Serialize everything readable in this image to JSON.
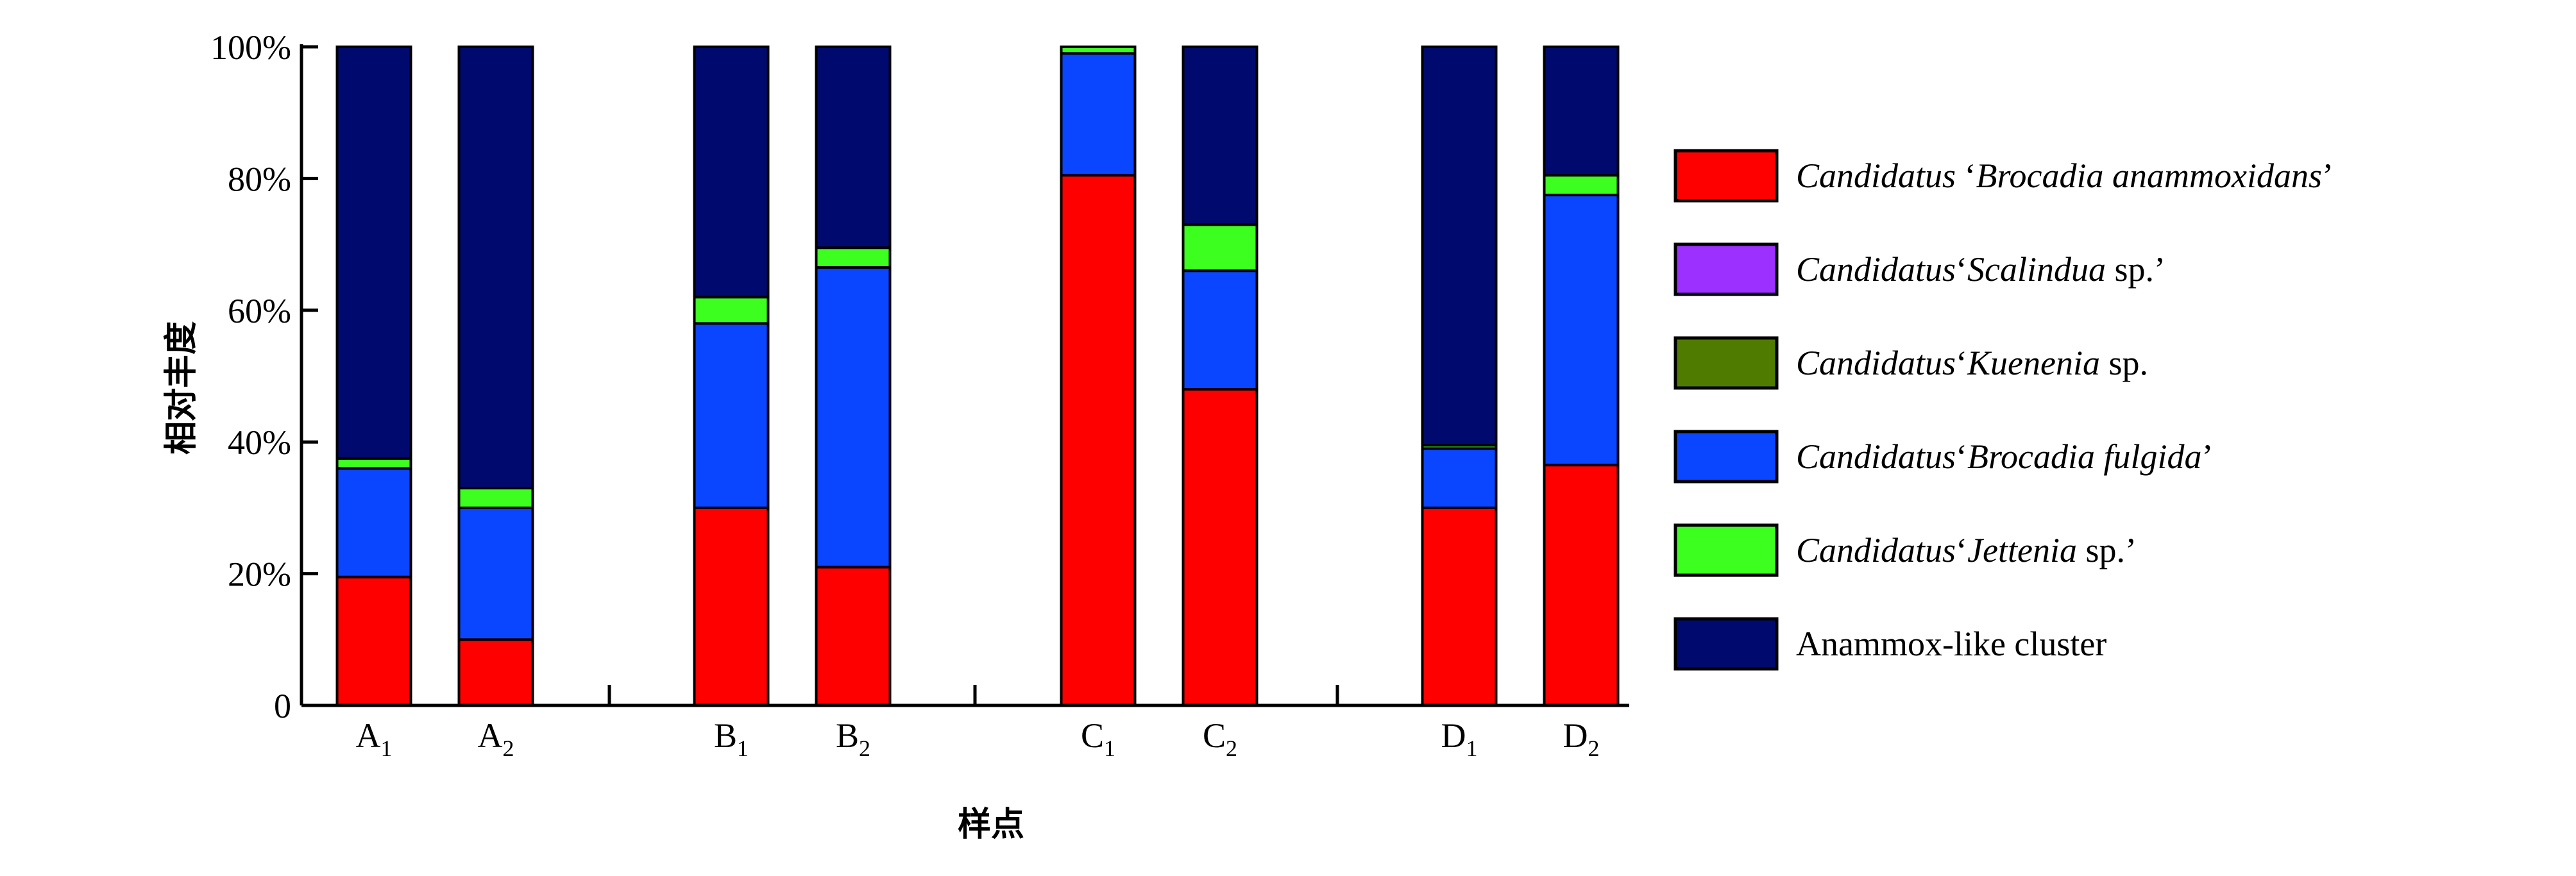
{
  "chart_data": {
    "type": "bar",
    "stacked": true,
    "ylabel": "相对丰度",
    "xlabel": "样点",
    "ylim": [
      0,
      100
    ],
    "y_ticks": [
      "0",
      "20%",
      "40%",
      "60%",
      "80%",
      "100%"
    ],
    "grid": false,
    "legend_position": "right",
    "categories": [
      {
        "base": "A",
        "sub": "1"
      },
      {
        "base": "A",
        "sub": "2"
      },
      {
        "base": "B",
        "sub": "1"
      },
      {
        "base": "B",
        "sub": "2"
      },
      {
        "base": "C",
        "sub": "1"
      },
      {
        "base": "C",
        "sub": "2"
      },
      {
        "base": "D",
        "sub": "1"
      },
      {
        "base": "D",
        "sub": "2"
      }
    ],
    "series": [
      {
        "legend": [
          {
            "text": "Candidatus",
            "italic": true
          },
          {
            "text": " ‘",
            "italic": false
          },
          {
            "text": "Brocadia anammoxidans",
            "italic": true
          },
          {
            "text": "’",
            "italic": false
          }
        ],
        "color": "#ff0000",
        "values": [
          19.5,
          10,
          30,
          21,
          80.5,
          48,
          30,
          36.5
        ]
      },
      {
        "legend": [
          {
            "text": "Candidatus",
            "italic": true
          },
          {
            "text": "‘",
            "italic": false
          },
          {
            "text": "Scalindua",
            "italic": true
          },
          {
            "text": " sp.’",
            "italic": false
          }
        ],
        "color": "#9b30ff",
        "values": [
          0,
          0,
          0,
          0,
          0,
          0,
          0,
          0
        ]
      },
      {
        "legend": [
          {
            "text": "Candidatus",
            "italic": true
          },
          {
            "text": "‘",
            "italic": false
          },
          {
            "text": "Kuenenia",
            "italic": true
          },
          {
            "text": " sp.",
            "italic": false
          }
        ],
        "color": "#4f7c00",
        "values": [
          0,
          0,
          0,
          0,
          0,
          0,
          0,
          0
        ]
      },
      {
        "legend": [
          {
            "text": "Candidatus",
            "italic": true
          },
          {
            "text": "‘",
            "italic": false
          },
          {
            "text": "Brocadia fulgida",
            "italic": true
          },
          {
            "text": "’",
            "italic": false
          }
        ],
        "color": "#0a46ff",
        "values": [
          16.5,
          20,
          28,
          45.5,
          18.5,
          18,
          9,
          41
        ]
      },
      {
        "legend": [
          {
            "text": "Candidatus",
            "italic": true
          },
          {
            "text": "‘",
            "italic": false
          },
          {
            "text": "Jettenia",
            "italic": true
          },
          {
            "text": " sp.’",
            "italic": false
          }
        ],
        "color": "#3cff20",
        "values": [
          1.5,
          3,
          4,
          3,
          1,
          7,
          0.5,
          3
        ]
      },
      {
        "legend": [
          {
            "text": "Anammox-like cluster",
            "italic": false
          }
        ],
        "color": "#000a6e",
        "values": [
          62.5,
          67,
          38,
          30.5,
          0,
          27,
          60.5,
          19.5
        ]
      }
    ]
  }
}
